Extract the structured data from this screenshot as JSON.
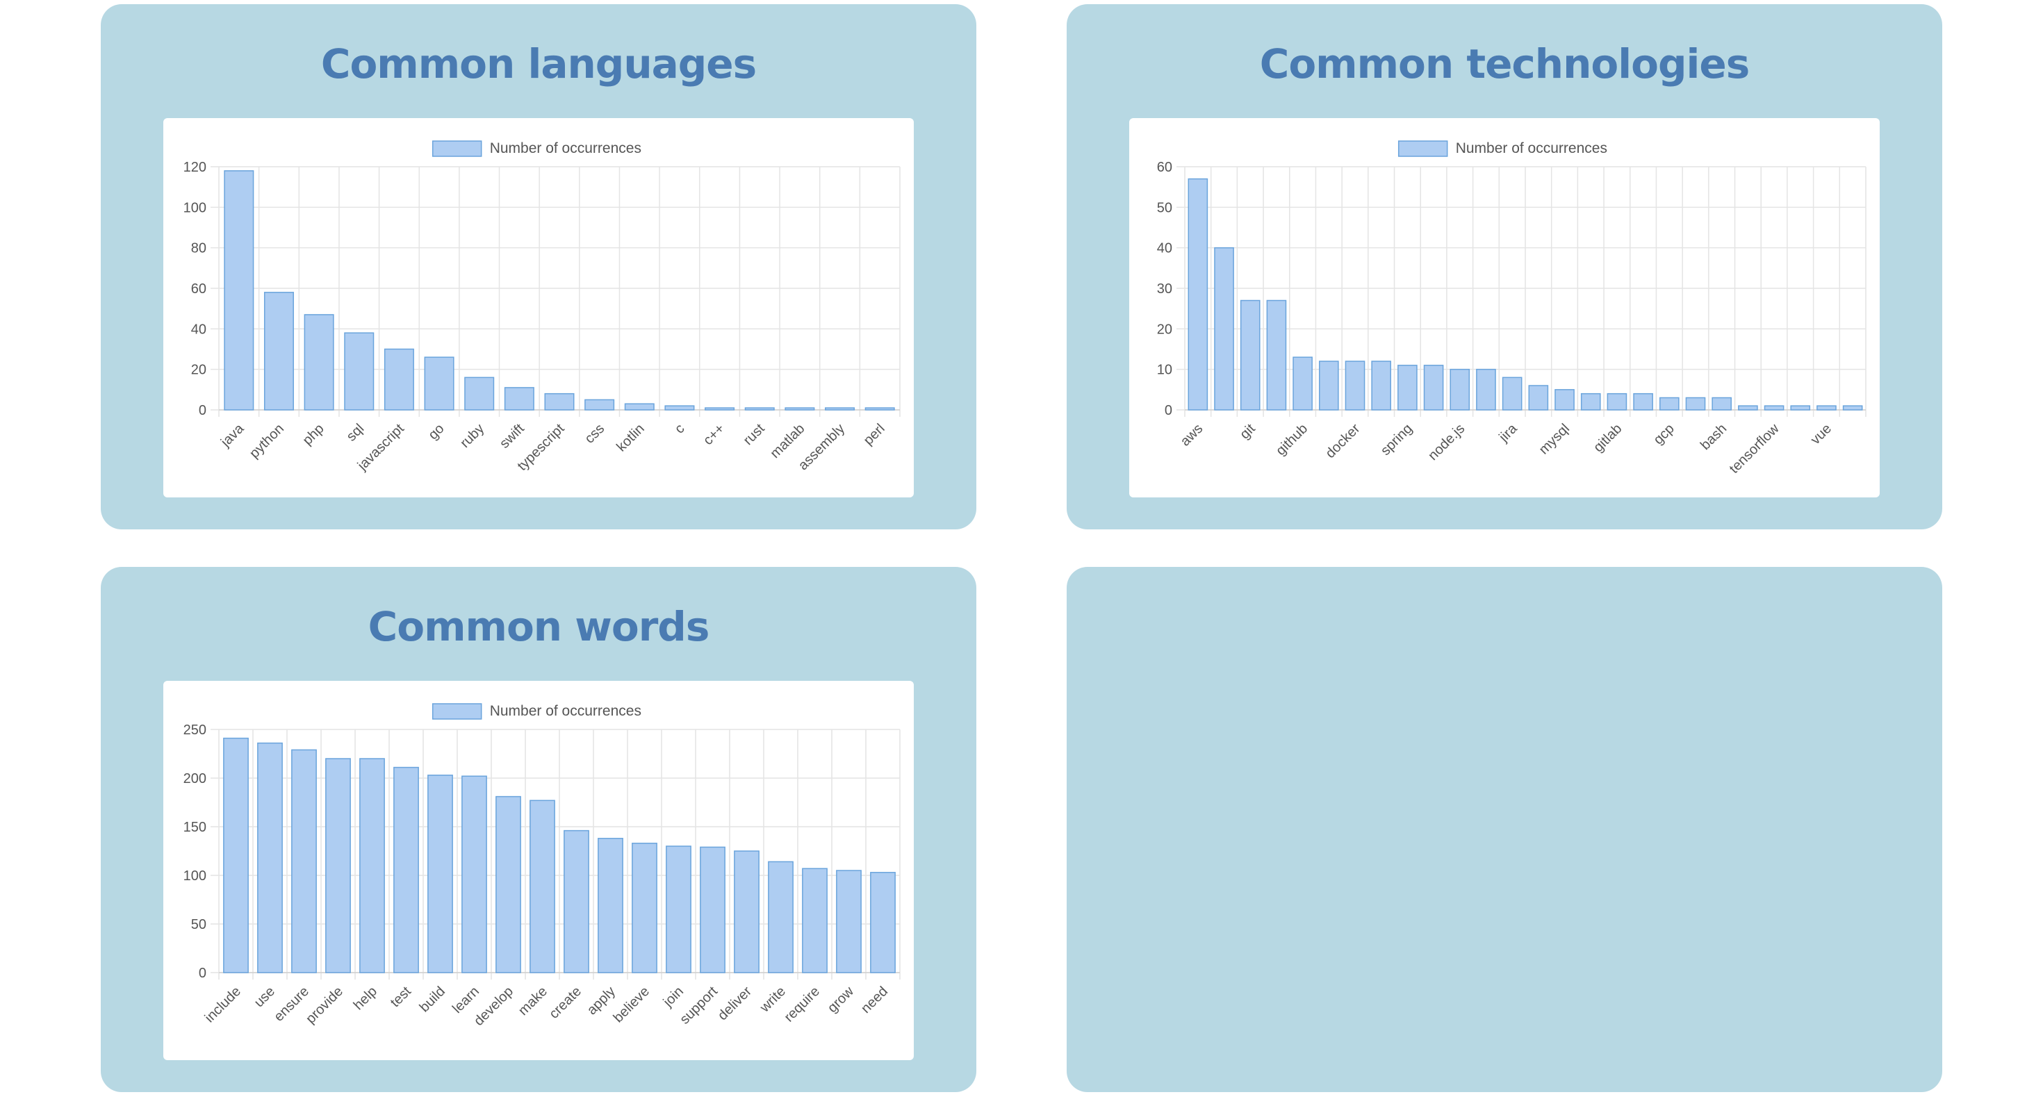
{
  "panels": {
    "languages": {
      "title": "Common languages"
    },
    "technologies": {
      "title": "Common technologies"
    },
    "words": {
      "title": "Common words"
    }
  },
  "colors": {
    "panel_background": "#b7d8e3",
    "title": "#4a7bb2",
    "bar_fill": "#aecdf2",
    "bar_stroke": "#6aa4dc",
    "grid": "#e4e4e4"
  },
  "chart_data": [
    {
      "type": "bar",
      "panel": "languages",
      "legend_label": "Number of occurrences",
      "legend_position": "top",
      "grid": true,
      "ylim": [
        0,
        120
      ],
      "yticks": [
        0,
        20,
        40,
        60,
        80,
        100,
        120
      ],
      "categories": [
        "java",
        "python",
        "php",
        "sql",
        "javascript",
        "go",
        "ruby",
        "swift",
        "typescript",
        "css",
        "kotlin",
        "c",
        "c++",
        "rust",
        "matlab",
        "assembly",
        "perl"
      ],
      "values": [
        118,
        58,
        47,
        38,
        30,
        26,
        16,
        11,
        8,
        5,
        3,
        2,
        1,
        1,
        1,
        1,
        1
      ]
    },
    {
      "type": "bar",
      "panel": "technologies",
      "legend_label": "Number of occurrences",
      "legend_position": "top",
      "grid": true,
      "ylim": [
        0,
        60
      ],
      "yticks": [
        0,
        10,
        20,
        30,
        40,
        50,
        60
      ],
      "categories": [
        "aws",
        "",
        "git",
        "",
        "github",
        "",
        "docker",
        "",
        "spring",
        "",
        "node.js",
        "",
        "jira",
        "",
        "mysql",
        "",
        "gitlab",
        "",
        "gcp",
        "",
        "bash",
        "",
        "tensorflow",
        "",
        "vue",
        ""
      ],
      "values": [
        57,
        40,
        27,
        27,
        13,
        12,
        12,
        12,
        11,
        11,
        10,
        10,
        8,
        6,
        5,
        4,
        4,
        4,
        3,
        3,
        3,
        1,
        1,
        1,
        1,
        1
      ]
    },
    {
      "type": "bar",
      "panel": "words",
      "legend_label": "Number of occurrences",
      "legend_position": "top",
      "grid": true,
      "ylim": [
        0,
        250
      ],
      "yticks": [
        0,
        50,
        100,
        150,
        200,
        250
      ],
      "categories": [
        "include",
        "use",
        "ensure",
        "provide",
        "help",
        "test",
        "build",
        "learn",
        "develop",
        "make",
        "create",
        "apply",
        "believe",
        "join",
        "support",
        "deliver",
        "write",
        "require",
        "grow",
        "need"
      ],
      "values": [
        241,
        236,
        229,
        220,
        220,
        211,
        203,
        202,
        181,
        177,
        146,
        138,
        133,
        130,
        129,
        125,
        114,
        107,
        105,
        103
      ]
    }
  ]
}
